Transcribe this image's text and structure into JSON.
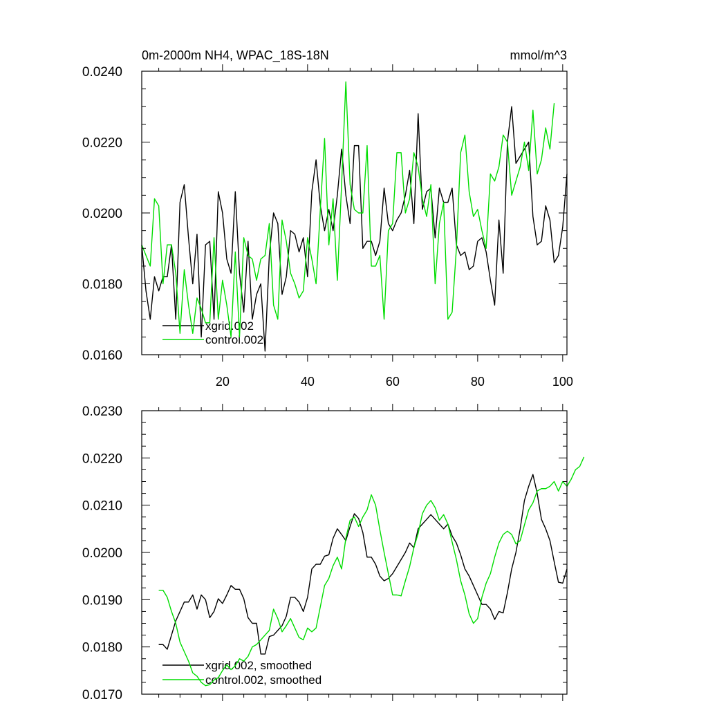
{
  "chart_data": [
    {
      "type": "line",
      "title": "0m-2000m NH4, WPAC_18S-18N",
      "units": "mmol/m^3",
      "xlim": [
        1,
        101
      ],
      "ylim": [
        0.016,
        0.024
      ],
      "xticks": [
        20,
        40,
        60,
        80,
        100
      ],
      "yticks": [
        0.016,
        0.018,
        0.02,
        0.022,
        0.024
      ],
      "xtick_labels": [
        "20",
        "40",
        "60",
        "80",
        "100"
      ],
      "ytick_labels": [
        "0.0160",
        "0.0180",
        "0.0200",
        "0.0220",
        "0.0240"
      ],
      "legend_position": "bottom-left",
      "series": [
        {
          "name": "xgrid.002",
          "color": "#000000",
          "x_start": 1,
          "values": [
            0.0191,
            0.0178,
            0.017,
            0.0182,
            0.0178,
            0.0182,
            0.0182,
            0.0191,
            0.017,
            0.0203,
            0.0208,
            0.0193,
            0.018,
            0.0194,
            0.0165,
            0.0191,
            0.0192,
            0.017,
            0.0206,
            0.02,
            0.0187,
            0.0183,
            0.0206,
            0.0183,
            0.0172,
            0.0192,
            0.017,
            0.0177,
            0.018,
            0.0161,
            0.0188,
            0.02,
            0.0197,
            0.0177,
            0.0182,
            0.0195,
            0.0194,
            0.0189,
            0.0193,
            0.0182,
            0.0206,
            0.0215,
            0.0202,
            0.0195,
            0.0201,
            0.0195,
            0.0205,
            0.0218,
            0.0205,
            0.0197,
            0.0219,
            0.0219,
            0.019,
            0.0192,
            0.0192,
            0.0188,
            0.0192,
            0.0207,
            0.0197,
            0.0195,
            0.0198,
            0.02,
            0.0205,
            0.0212,
            0.0197,
            0.0228,
            0.0201,
            0.0206,
            0.0207,
            0.0193,
            0.0207,
            0.0203,
            0.0203,
            0.0207,
            0.0191,
            0.0188,
            0.0189,
            0.0184,
            0.0185,
            0.0192,
            0.0193,
            0.0189,
            0.0181,
            0.0174,
            0.0198,
            0.0183,
            0.022,
            0.023,
            0.0214,
            0.0216,
            0.0218,
            0.022,
            0.0199,
            0.0191,
            0.0192,
            0.0202,
            0.0198,
            0.0186,
            0.0188,
            0.0196,
            0.0211
          ]
        },
        {
          "name": "control.002",
          "color": "#00dd00",
          "x_start": 1,
          "values": [
            0.0191,
            0.0188,
            0.0185,
            0.0204,
            0.0202,
            0.018,
            0.0191,
            0.0191,
            0.0183,
            0.0166,
            0.0184,
            0.0174,
            0.0166,
            0.0176,
            0.0173,
            0.0169,
            0.0169,
            0.0193,
            0.017,
            0.0181,
            0.0174,
            0.0165,
            0.0189,
            0.0165,
            0.0193,
            0.0188,
            0.0187,
            0.0181,
            0.0187,
            0.0188,
            0.0197,
            0.0174,
            0.017,
            0.0198,
            0.0192,
            0.0183,
            0.018,
            0.0176,
            0.0178,
            0.0193,
            0.0187,
            0.018,
            0.0201,
            0.0221,
            0.0191,
            0.0204,
            0.0181,
            0.0208,
            0.0237,
            0.0208,
            0.0201,
            0.02,
            0.02,
            0.0219,
            0.0185,
            0.0185,
            0.0188,
            0.017,
            0.0195,
            0.0197,
            0.0217,
            0.0217,
            0.02,
            0.0204,
            0.0217,
            0.0213,
            0.0204,
            0.0199,
            0.0208,
            0.018,
            0.0197,
            0.0203,
            0.017,
            0.0172,
            0.019,
            0.0217,
            0.0222,
            0.0206,
            0.0199,
            0.0201,
            0.0195,
            0.019,
            0.0211,
            0.0209,
            0.0213,
            0.0222,
            0.022,
            0.0205,
            0.0209,
            0.0213,
            0.022,
            0.0212,
            0.0229,
            0.0211,
            0.0215,
            0.0224,
            0.0218,
            0.0231
          ]
        }
      ]
    },
    {
      "type": "line",
      "xlim": [
        1,
        101
      ],
      "ylim": [
        0.017,
        0.023
      ],
      "xticks": [
        20,
        40,
        60,
        80,
        100
      ],
      "yticks": [
        0.017,
        0.018,
        0.019,
        0.02,
        0.021,
        0.022,
        0.023
      ],
      "ytick_labels": [
        "0.0170",
        "0.0180",
        "0.0190",
        "0.0200",
        "0.0210",
        "0.0220",
        "0.0230"
      ],
      "legend_position": "bottom-left",
      "series": [
        {
          "name": "xgrid.002, smoothed",
          "color": "#000000",
          "x_start": 5,
          "values": [
            0.01805,
            0.01805,
            0.01795,
            0.01825,
            0.01855,
            0.01875,
            0.01895,
            0.01895,
            0.0191,
            0.0188,
            0.0191,
            0.019,
            0.01862,
            0.01875,
            0.01902,
            0.01892,
            0.0191,
            0.0193,
            0.01922,
            0.01922,
            0.01902,
            0.01862,
            0.0185,
            0.0185,
            0.01785,
            0.01785,
            0.01822,
            0.01825,
            0.01835,
            0.01845,
            0.01865,
            0.01905,
            0.01905,
            0.01895,
            0.01875,
            0.01905,
            0.01965,
            0.01975,
            0.01975,
            0.01992,
            0.01995,
            0.0203,
            0.0205,
            0.02038,
            0.02025,
            0.02055,
            0.02082,
            0.02072,
            0.02042,
            0.0199,
            0.0199,
            0.01975,
            0.0195,
            0.0194,
            0.01945,
            0.01955,
            0.0197,
            0.01985,
            0.02,
            0.0202,
            0.0201,
            0.0205,
            0.0206,
            0.0207,
            0.0208,
            0.0207,
            0.0206,
            0.0205,
            0.0206,
            0.02035,
            0.0202,
            0.01995,
            0.01965,
            0.0195,
            0.0193,
            0.0191,
            0.0189,
            0.0189,
            0.0188,
            0.01858,
            0.01875,
            0.01872,
            0.01915,
            0.01965,
            0.02,
            0.0205,
            0.0211,
            0.0214,
            0.02165,
            0.02125,
            0.0207,
            0.0205,
            0.02025,
            0.0198,
            0.01937,
            0.01935,
            0.01965
          ]
        },
        {
          "name": "control.002, smoothed",
          "color": "#00dd00",
          "x_start": 5,
          "values": [
            0.0192,
            0.0192,
            0.01905,
            0.01875,
            0.0185,
            0.0181,
            0.0179,
            0.0177,
            0.01745,
            0.01738,
            0.01725,
            0.01718,
            0.0172,
            0.0173,
            0.01735,
            0.0175,
            0.01762,
            0.01752,
            0.0176,
            0.01775,
            0.0177,
            0.0178,
            0.018,
            0.01805,
            0.01815,
            0.01825,
            0.01835,
            0.0188,
            0.0186,
            0.01832,
            0.01845,
            0.0186,
            0.0184,
            0.0182,
            0.01815,
            0.0184,
            0.01832,
            0.0184,
            0.01885,
            0.0193,
            0.01945,
            0.01972,
            0.0199,
            0.01965,
            0.0203,
            0.02068,
            0.02075,
            0.02055,
            0.02075,
            0.0209,
            0.02122,
            0.021,
            0.02048,
            0.02,
            0.01955,
            0.0191,
            0.0191,
            0.01908,
            0.0194,
            0.0197,
            0.0201,
            0.0204,
            0.02082,
            0.021,
            0.0211,
            0.02095,
            0.02068,
            0.0208,
            0.0206,
            0.02022,
            0.01985,
            0.0194,
            0.0191,
            0.0187,
            0.0185,
            0.0186,
            0.01905,
            0.01935,
            0.01955,
            0.0199,
            0.0202,
            0.02038,
            0.02045,
            0.02038,
            0.02018,
            0.02025,
            0.02058,
            0.0209,
            0.02105,
            0.0213,
            0.02135,
            0.02135,
            0.0214,
            0.0215,
            0.0213,
            0.0215,
            0.0214,
            0.02155,
            0.02175,
            0.02182,
            0.02202
          ]
        }
      ]
    }
  ]
}
